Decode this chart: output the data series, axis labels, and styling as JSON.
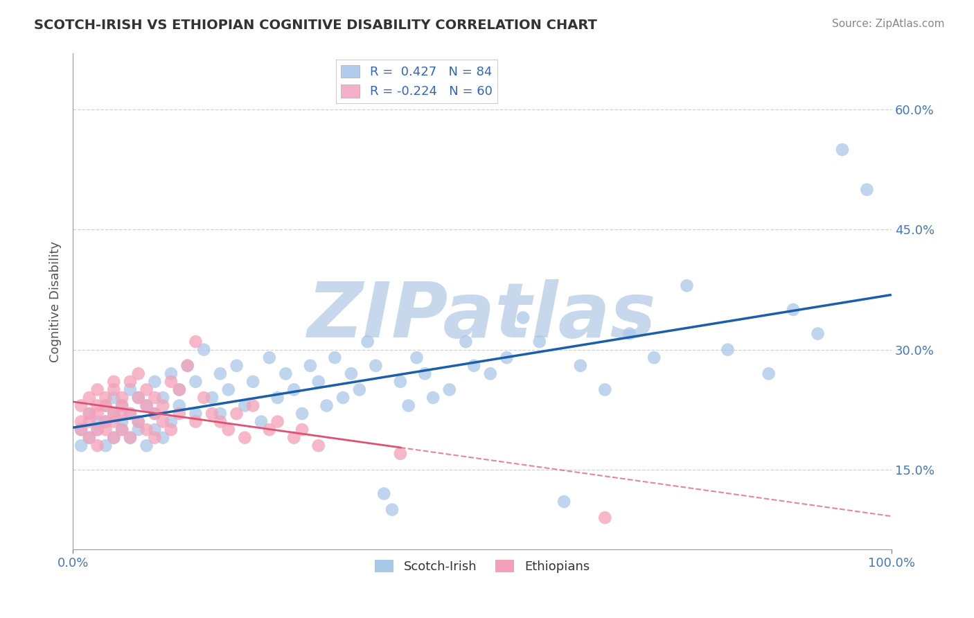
{
  "title": "SCOTCH-IRISH VS ETHIOPIAN COGNITIVE DISABILITY CORRELATION CHART",
  "source": "Source: ZipAtlas.com",
  "ylabel": "Cognitive Disability",
  "yticks": [
    0.15,
    0.3,
    0.45,
    0.6
  ],
  "ytick_labels": [
    "15.0%",
    "30.0%",
    "45.0%",
    "60.0%"
  ],
  "xlim": [
    0,
    1
  ],
  "ylim": [
    0.05,
    0.67
  ],
  "scotch_irish_R": 0.427,
  "scotch_irish_N": 84,
  "ethiopian_R": -0.224,
  "ethiopian_N": 60,
  "scotch_irish_color": "#a8c8e8",
  "ethiopian_color": "#f4a0b8",
  "scotch_irish_line_color": "#1a5faa",
  "ethiopian_line_color": "#e05070",
  "legend_color_blue": "#b0ccee",
  "legend_color_pink": "#f4b0c8",
  "watermark": "ZIPatlas",
  "watermark_color": "#c8d8ec",
  "background_color": "#ffffff",
  "grid_color": "#cccccc",
  "title_color": "#333333",
  "axis_label_color": "#555555",
  "tick_color": "#4477bb",
  "scotch_irish_x": [
    0.01,
    0.01,
    0.02,
    0.02,
    0.03,
    0.03,
    0.04,
    0.04,
    0.04,
    0.05,
    0.05,
    0.05,
    0.06,
    0.06,
    0.06,
    0.07,
    0.07,
    0.07,
    0.08,
    0.08,
    0.08,
    0.09,
    0.09,
    0.1,
    0.1,
    0.1,
    0.11,
    0.11,
    0.12,
    0.12,
    0.13,
    0.13,
    0.14,
    0.15,
    0.15,
    0.16,
    0.17,
    0.18,
    0.18,
    0.19,
    0.2,
    0.21,
    0.22,
    0.23,
    0.24,
    0.25,
    0.26,
    0.27,
    0.28,
    0.29,
    0.3,
    0.31,
    0.32,
    0.33,
    0.34,
    0.35,
    0.36,
    0.37,
    0.38,
    0.39,
    0.4,
    0.41,
    0.42,
    0.43,
    0.44,
    0.46,
    0.48,
    0.49,
    0.51,
    0.53,
    0.55,
    0.57,
    0.6,
    0.62,
    0.65,
    0.68,
    0.71,
    0.75,
    0.8,
    0.85,
    0.88,
    0.91,
    0.94,
    0.97
  ],
  "scotch_irish_y": [
    0.2,
    0.18,
    0.22,
    0.19,
    0.21,
    0.2,
    0.23,
    0.18,
    0.21,
    0.22,
    0.19,
    0.24,
    0.21,
    0.2,
    0.23,
    0.22,
    0.25,
    0.19,
    0.21,
    0.24,
    0.2,
    0.23,
    0.18,
    0.22,
    0.26,
    0.2,
    0.24,
    0.19,
    0.27,
    0.21,
    0.25,
    0.23,
    0.28,
    0.22,
    0.26,
    0.3,
    0.24,
    0.22,
    0.27,
    0.25,
    0.28,
    0.23,
    0.26,
    0.21,
    0.29,
    0.24,
    0.27,
    0.25,
    0.22,
    0.28,
    0.26,
    0.23,
    0.29,
    0.24,
    0.27,
    0.25,
    0.31,
    0.28,
    0.12,
    0.1,
    0.26,
    0.23,
    0.29,
    0.27,
    0.24,
    0.25,
    0.31,
    0.28,
    0.27,
    0.29,
    0.34,
    0.31,
    0.11,
    0.28,
    0.25,
    0.32,
    0.29,
    0.38,
    0.3,
    0.27,
    0.35,
    0.32,
    0.55,
    0.5
  ],
  "ethiopian_x": [
    0.01,
    0.01,
    0.01,
    0.02,
    0.02,
    0.02,
    0.02,
    0.03,
    0.03,
    0.03,
    0.03,
    0.03,
    0.04,
    0.04,
    0.04,
    0.04,
    0.05,
    0.05,
    0.05,
    0.05,
    0.05,
    0.06,
    0.06,
    0.06,
    0.06,
    0.07,
    0.07,
    0.07,
    0.08,
    0.08,
    0.08,
    0.09,
    0.09,
    0.09,
    0.1,
    0.1,
    0.1,
    0.11,
    0.11,
    0.12,
    0.12,
    0.13,
    0.13,
    0.14,
    0.15,
    0.15,
    0.16,
    0.17,
    0.18,
    0.19,
    0.2,
    0.21,
    0.22,
    0.24,
    0.25,
    0.27,
    0.28,
    0.3,
    0.4,
    0.65
  ],
  "ethiopian_y": [
    0.21,
    0.23,
    0.2,
    0.22,
    0.24,
    0.19,
    0.21,
    0.23,
    0.2,
    0.22,
    0.25,
    0.18,
    0.21,
    0.24,
    0.2,
    0.23,
    0.22,
    0.25,
    0.19,
    0.21,
    0.26,
    0.22,
    0.24,
    0.2,
    0.23,
    0.22,
    0.26,
    0.19,
    0.24,
    0.21,
    0.27,
    0.23,
    0.2,
    0.25,
    0.22,
    0.19,
    0.24,
    0.23,
    0.21,
    0.26,
    0.2,
    0.25,
    0.22,
    0.28,
    0.21,
    0.31,
    0.24,
    0.22,
    0.21,
    0.2,
    0.22,
    0.19,
    0.23,
    0.2,
    0.21,
    0.19,
    0.2,
    0.18,
    0.17,
    0.09
  ]
}
